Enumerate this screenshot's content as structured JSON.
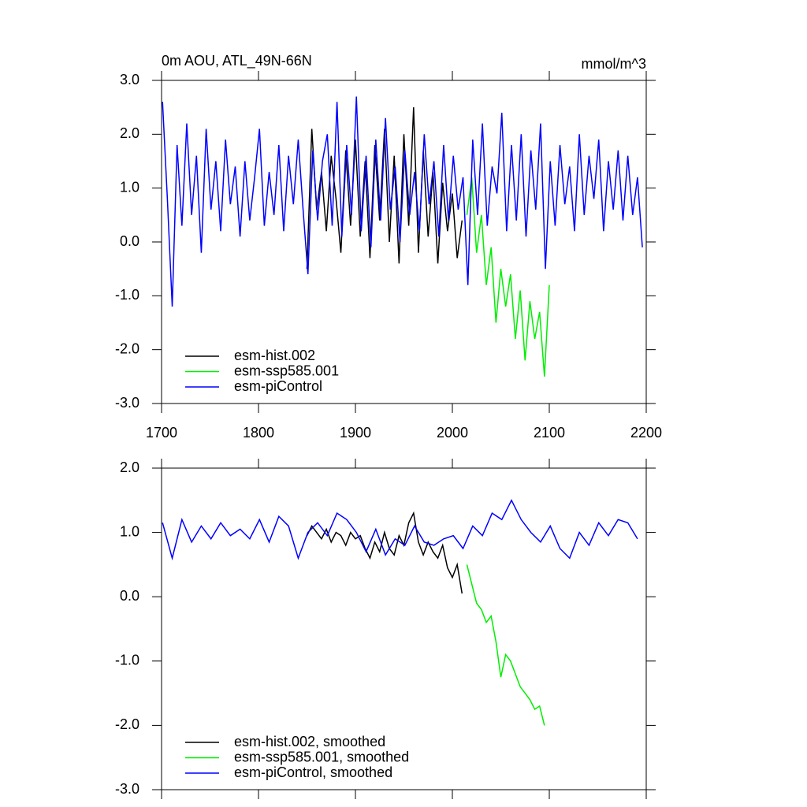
{
  "chart_data": [
    {
      "type": "line",
      "title": "0m AOU, ATL_49N-66N",
      "units": "mmol/m^3",
      "xlim": [
        1700,
        2200
      ],
      "xticks": [
        1700,
        1800,
        1900,
        2000,
        2100,
        2200
      ],
      "ylim": [
        -3,
        3
      ],
      "yticks": [
        {
          "value": 3,
          "label": "3.0"
        },
        {
          "value": 2,
          "label": "2.0"
        },
        {
          "value": 1,
          "label": "1.0"
        },
        {
          "value": 0,
          "label": "0.0"
        },
        {
          "value": -1,
          "label": "-1.0"
        },
        {
          "value": -2,
          "label": "-2.0"
        },
        {
          "value": -3,
          "label": "-3.0"
        }
      ],
      "series": [
        {
          "name": "esm-hist.002",
          "color": "#000000",
          "x": [
            1850,
            1855,
            1860,
            1865,
            1870,
            1875,
            1880,
            1885,
            1890,
            1895,
            1900,
            1905,
            1910,
            1915,
            1920,
            1925,
            1930,
            1935,
            1940,
            1945,
            1950,
            1955,
            1960,
            1965,
            1970,
            1975,
            1980,
            1985,
            1990,
            1995,
            2000,
            2005,
            2010
          ],
          "values": [
            -0.5,
            2.1,
            0.6,
            1.3,
            0.2,
            1.6,
            0.8,
            -0.2,
            1.7,
            0.3,
            1.9,
            0.1,
            1.5,
            -0.3,
            1.8,
            0.4,
            2.1,
            0.0,
            1.6,
            -0.4,
            2.0,
            0.3,
            2.5,
            -0.2,
            1.7,
            0.1,
            1.3,
            -0.4,
            1.1,
            0.2,
            0.9,
            -0.3,
            0.4
          ]
        },
        {
          "name": "esm-ssp585.001",
          "color": "#00ee00",
          "x": [
            2015,
            2020,
            2025,
            2030,
            2035,
            2040,
            2045,
            2050,
            2055,
            2060,
            2065,
            2070,
            2075,
            2080,
            2085,
            2090,
            2095,
            2100
          ],
          "values": [
            0.5,
            1.2,
            -0.2,
            0.5,
            -0.8,
            -0.1,
            -1.5,
            -0.5,
            -1.2,
            -0.6,
            -1.8,
            -0.9,
            -2.2,
            -1.1,
            -1.8,
            -1.3,
            -2.5,
            -0.8
          ]
        },
        {
          "name": "esm-piControl",
          "color": "#0000ff",
          "x": [
            1701,
            1706,
            1711,
            1716,
            1721,
            1726,
            1731,
            1736,
            1741,
            1746,
            1751,
            1756,
            1761,
            1766,
            1771,
            1776,
            1781,
            1786,
            1791,
            1796,
            1801,
            1806,
            1811,
            1816,
            1821,
            1826,
            1831,
            1836,
            1841,
            1846,
            1851,
            1856,
            1861,
            1866,
            1871,
            1876,
            1881,
            1886,
            1891,
            1896,
            1901,
            1906,
            1911,
            1916,
            1921,
            1926,
            1931,
            1936,
            1941,
            1946,
            1951,
            1956,
            1961,
            1966,
            1971,
            1976,
            1981,
            1986,
            1991,
            1996,
            2001,
            2006,
            2011,
            2016,
            2021,
            2026,
            2031,
            2036,
            2041,
            2046,
            2051,
            2056,
            2061,
            2066,
            2071,
            2076,
            2081,
            2086,
            2091,
            2096,
            2101,
            2106,
            2111,
            2116,
            2121,
            2126,
            2131,
            2136,
            2141,
            2146,
            2151,
            2156,
            2161,
            2166,
            2171,
            2176,
            2181,
            2186,
            2191,
            2196
          ],
          "values": [
            2.6,
            0.8,
            -1.2,
            1.8,
            0.3,
            2.2,
            0.5,
            1.6,
            -0.2,
            2.1,
            0.6,
            1.5,
            0.2,
            1.9,
            0.7,
            1.4,
            0.1,
            1.5,
            0.4,
            1.2,
            2.1,
            0.3,
            1.3,
            0.5,
            1.8,
            0.2,
            1.6,
            0.7,
            1.9,
            0.6,
            -0.6,
            1.7,
            0.4,
            1.5,
            2.0,
            0.3,
            2.6,
            0.1,
            1.8,
            0.5,
            2.7,
            0.2,
            1.6,
            -0.1,
            1.9,
            0.4,
            2.3,
            0.6,
            1.4,
            0.0,
            1.7,
            0.5,
            1.3,
            0.2,
            2.0,
            0.7,
            1.5,
            0.1,
            1.8,
            0.4,
            1.6,
            0.6,
            1.2,
            -0.8,
            1.9,
            0.5,
            2.2,
            0.3,
            1.4,
            0.9,
            2.4,
            0.2,
            1.8,
            0.4,
            2.0,
            0.1,
            1.7,
            0.6,
            2.2,
            -0.5,
            1.5,
            0.3,
            1.8,
            0.7,
            1.4,
            0.2,
            2.0,
            0.5,
            1.6,
            0.8,
            1.9,
            0.2,
            1.5,
            0.6,
            1.7,
            0.4,
            1.6,
            0.5,
            1.2,
            -0.1
          ]
        }
      ]
    },
    {
      "type": "line",
      "xlim": [
        1700,
        2200
      ],
      "xticks": [
        1700,
        1800,
        1900,
        2000,
        2100,
        2200
      ],
      "ylim": [
        -3,
        2
      ],
      "yticks": [
        {
          "value": 2,
          "label": "2.0"
        },
        {
          "value": 1,
          "label": "1.0"
        },
        {
          "value": 0,
          "label": "0.0"
        },
        {
          "value": -1,
          "label": "-1.0"
        },
        {
          "value": -2,
          "label": "-2.0"
        },
        {
          "value": -3,
          "label": "-3.0"
        }
      ],
      "series": [
        {
          "name": "esm-hist.002, smoothed",
          "color": "#000000",
          "x": [
            1850,
            1855,
            1860,
            1865,
            1870,
            1875,
            1880,
            1885,
            1890,
            1895,
            1900,
            1905,
            1910,
            1915,
            1920,
            1925,
            1930,
            1935,
            1940,
            1945,
            1950,
            1955,
            1960,
            1965,
            1970,
            1975,
            1980,
            1985,
            1990,
            1995,
            2000,
            2005,
            2010
          ],
          "values": [
            0.95,
            1.1,
            1.0,
            0.9,
            1.05,
            0.85,
            1.0,
            0.95,
            0.8,
            1.0,
            0.9,
            0.95,
            0.75,
            0.6,
            0.85,
            0.7,
            1.0,
            0.75,
            0.65,
            0.95,
            0.8,
            1.15,
            1.3,
            0.85,
            0.65,
            0.85,
            0.7,
            0.6,
            0.8,
            0.45,
            0.3,
            0.5,
            0.05
          ]
        },
        {
          "name": "esm-ssp585.001, smoothed",
          "color": "#00ee00",
          "x": [
            2015,
            2020,
            2025,
            2030,
            2035,
            2040,
            2045,
            2050,
            2055,
            2060,
            2065,
            2070,
            2075,
            2080,
            2085,
            2090,
            2095
          ],
          "values": [
            0.5,
            0.2,
            -0.1,
            -0.2,
            -0.4,
            -0.3,
            -0.7,
            -1.25,
            -0.9,
            -1.0,
            -1.2,
            -1.4,
            -1.5,
            -1.6,
            -1.75,
            -1.7,
            -2.0
          ]
        },
        {
          "name": "esm-piControl, smoothed",
          "color": "#0000ff",
          "x": [
            1701,
            1711,
            1721,
            1731,
            1741,
            1751,
            1761,
            1771,
            1781,
            1791,
            1801,
            1811,
            1821,
            1831,
            1841,
            1851,
            1861,
            1871,
            1881,
            1891,
            1901,
            1911,
            1921,
            1931,
            1941,
            1951,
            1961,
            1971,
            1981,
            1991,
            2001,
            2011,
            2021,
            2031,
            2041,
            2051,
            2061,
            2071,
            2081,
            2091,
            2101,
            2111,
            2121,
            2131,
            2141,
            2151,
            2161,
            2171,
            2181,
            2191
          ],
          "values": [
            1.15,
            0.6,
            1.2,
            0.85,
            1.1,
            0.9,
            1.15,
            0.95,
            1.05,
            0.9,
            1.2,
            0.85,
            1.25,
            1.1,
            0.6,
            1.0,
            1.15,
            0.95,
            1.3,
            1.2,
            1.0,
            0.7,
            1.05,
            0.65,
            0.9,
            0.8,
            1.1,
            0.85,
            0.8,
            0.9,
            0.95,
            0.75,
            1.1,
            0.95,
            1.3,
            1.2,
            1.5,
            1.2,
            1.0,
            0.85,
            1.1,
            0.75,
            0.6,
            1.0,
            0.8,
            1.15,
            0.95,
            1.2,
            1.15,
            0.9
          ]
        }
      ]
    }
  ]
}
